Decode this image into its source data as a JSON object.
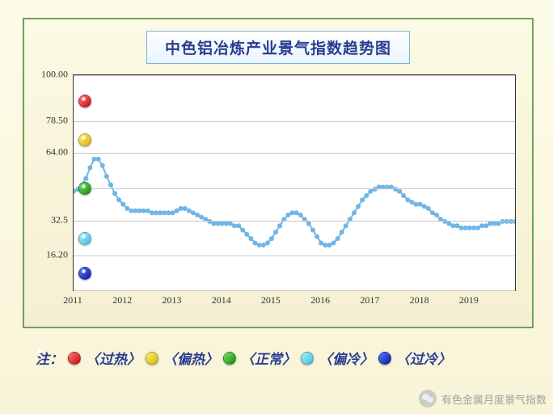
{
  "title": "中色铝冶炼产业景气指数趋势图",
  "legend_prefix": "注：",
  "legend_items": [
    {
      "label": "〈过热〉",
      "color": "red"
    },
    {
      "label": "〈偏热〉",
      "color": "yellow"
    },
    {
      "label": "〈正常〉",
      "color": "green"
    },
    {
      "label": "〈偏冷〉",
      "color": "cyan"
    },
    {
      "label": "〈过冷〉",
      "color": "blue"
    }
  ],
  "watermark": "有色金属月度景气指数",
  "chart": {
    "type": "line",
    "line_color": "#6fb5e6",
    "marker_color": "#6fb5e6",
    "marker_size": 3,
    "line_width": 2,
    "background": "#ffffff",
    "grid_color": "#c8c8c8",
    "xlim": [
      2011,
      2020
    ],
    "y_ticks": [
      {
        "v": 0,
        "label": ""
      },
      {
        "v": 16.2,
        "label": "16.20"
      },
      {
        "v": 32.5,
        "label": "32.5"
      },
      {
        "v": 47.5,
        "label": ""
      },
      {
        "v": 64.0,
        "label": "64.00"
      },
      {
        "v": 78.5,
        "label": "78.50"
      },
      {
        "v": 100.0,
        "label": "100.00"
      }
    ],
    "x_ticks": [
      2011,
      2012,
      2013,
      2014,
      2015,
      2016,
      2017,
      2018,
      2019
    ],
    "bands": [
      {
        "name": "过热",
        "color": "#d42020",
        "y": 88
      },
      {
        "name": "偏热",
        "color": "#f2d31b",
        "y": 70
      },
      {
        "name": "正常",
        "color": "#2fa82f",
        "y": 47.5
      },
      {
        "name": "偏冷",
        "color": "#6fd3f0",
        "y": 24
      },
      {
        "name": "过冷",
        "color": "#1530c0",
        "y": 8
      }
    ],
    "series": [
      46,
      47,
      49,
      52,
      57,
      61,
      61,
      58,
      53,
      49,
      45,
      42,
      40,
      38,
      37,
      37,
      37,
      37,
      37,
      36,
      36,
      36,
      36,
      36,
      36,
      37,
      38,
      38,
      37,
      36,
      35,
      34,
      33,
      32,
      31,
      31,
      31,
      31,
      31,
      30,
      30,
      28,
      26,
      24,
      22,
      21,
      21,
      22,
      24,
      27,
      30,
      33,
      35,
      36,
      36,
      35,
      33,
      31,
      28,
      25,
      22,
      21,
      21,
      22,
      24,
      27,
      30,
      33,
      36,
      39,
      42,
      44,
      46,
      47,
      48,
      48,
      48,
      48,
      47,
      46,
      44,
      42,
      41,
      40,
      40,
      39,
      38,
      36,
      35,
      33,
      32,
      31,
      30,
      30,
      29,
      29,
      29,
      29,
      29,
      30,
      30,
      31,
      31,
      31,
      32,
      32,
      32,
      32
    ]
  },
  "colors": {
    "red": "linear-gradient(135deg,#ff7a7a,#c80808)",
    "yellow": "linear-gradient(135deg,#fff27a,#d8b400)",
    "green": "linear-gradient(135deg,#77e06a,#178a10)",
    "cyan": "linear-gradient(135deg,#aef0ff,#3fbde0)",
    "blue": "linear-gradient(135deg,#5a78ff,#0a1aa0)"
  }
}
